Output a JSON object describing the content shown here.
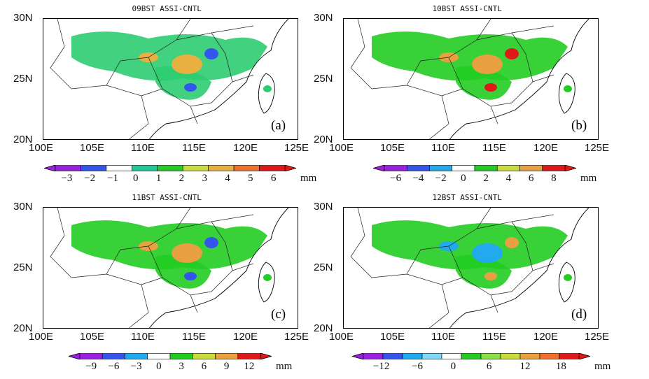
{
  "axes": {
    "y_ticks": [
      "30N",
      "25N",
      "20N"
    ],
    "x_ticks": [
      "100E",
      "105E",
      "110E",
      "115E",
      "120E",
      "125E"
    ]
  },
  "panels": [
    {
      "title": "09BST ASSI-CNTL",
      "label": "(a)",
      "colorbar": {
        "colors": [
          "#9b1fe0",
          "#3355ee",
          "#ffffff",
          "#20c89a",
          "#22cc22",
          "#c8dc3c",
          "#e8b040",
          "#f07030",
          "#e01818"
        ],
        "ticks": [
          "−3",
          "−2",
          "−1",
          "0",
          "1",
          "2",
          "3",
          "4",
          "5",
          "6"
        ],
        "unit": "mm"
      },
      "blobs": [
        {
          "color": "#2ecc71",
          "shape": "band"
        },
        {
          "color": "#e8b040",
          "shape": "spots"
        },
        {
          "color": "#3355ee",
          "shape": "core"
        }
      ]
    },
    {
      "title": "10BST ASSI-CNTL",
      "label": "(b)",
      "colorbar": {
        "colors": [
          "#9b1fe0",
          "#3355ee",
          "#22aaee",
          "#ffffff",
          "#22cc22",
          "#c8dc3c",
          "#e8a040",
          "#e01818"
        ],
        "ticks": [
          "−6",
          "−4",
          "−2",
          "0",
          "2",
          "4",
          "6",
          "8"
        ],
        "unit": "mm"
      },
      "blobs": [
        {
          "color": "#22cc22",
          "shape": "band"
        },
        {
          "color": "#e8a040",
          "shape": "spots"
        },
        {
          "color": "#e01818",
          "shape": "core"
        }
      ]
    },
    {
      "title": "11BST ASSI-CNTL",
      "label": "(c)",
      "colorbar": {
        "colors": [
          "#9b1fe0",
          "#3355ee",
          "#22aaee",
          "#ffffff",
          "#22cc22",
          "#c8dc3c",
          "#e8a040",
          "#e01818"
        ],
        "ticks": [
          "−9",
          "−6",
          "−3",
          "0",
          "3",
          "6",
          "9",
          "12"
        ],
        "unit": "mm"
      },
      "blobs": [
        {
          "color": "#22cc22",
          "shape": "band"
        },
        {
          "color": "#e8a040",
          "shape": "spots"
        },
        {
          "color": "#3355ee",
          "shape": "core"
        }
      ]
    },
    {
      "title": "12BST ASSI-CNTL",
      "label": "(d)",
      "colorbar": {
        "colors": [
          "#9b1fe0",
          "#3355ee",
          "#22aaee",
          "#7fd8f8",
          "#ffffff",
          "#22cc22",
          "#8ae04a",
          "#c8dc3c",
          "#e8a040",
          "#f07030",
          "#e01818"
        ],
        "ticks": [
          "−12",
          "−6",
          "0",
          "6",
          "12",
          "18"
        ],
        "unit": "mm"
      },
      "blobs": [
        {
          "color": "#22cc22",
          "shape": "band"
        },
        {
          "color": "#22aaee",
          "shape": "core"
        },
        {
          "color": "#e8a040",
          "shape": "spots"
        }
      ]
    }
  ]
}
